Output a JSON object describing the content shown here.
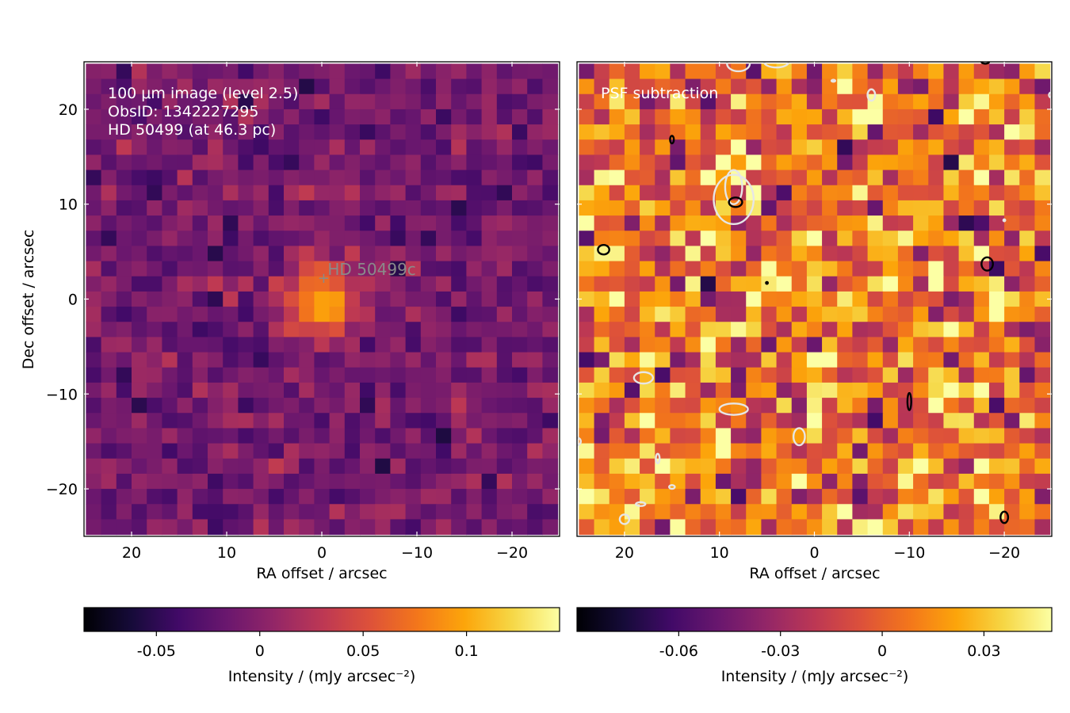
{
  "figure": {
    "ylabel": "Dec offset / arcsec",
    "xlabel": "RA offset / arcsec"
  },
  "chart_data": [
    {
      "type": "heatmap",
      "panel": "left",
      "annotation_lines": [
        "100 μm image (level 2.5)",
        "ObsID: 1342227295",
        "HD 50499 (at 46.3 pc)"
      ],
      "marker": {
        "symbol": "+",
        "label": "HD  50499c",
        "x": -0.2,
        "y": 2.2
      },
      "xlabel": "RA offset / arcsec",
      "ylabel": "Dec offset / arcsec",
      "xlim": [
        25,
        -25
      ],
      "ylim": [
        -25,
        25
      ],
      "xticks": [
        20,
        10,
        0,
        -10,
        -20
      ],
      "yticks": [
        20,
        10,
        0,
        -10,
        -20
      ],
      "xtick_labels": [
        "20",
        "10",
        "0",
        "−10",
        "−20"
      ],
      "ytick_labels": [
        "20",
        "10",
        "0",
        "−10",
        "−20"
      ],
      "colormap": "inferno",
      "vmin": -0.085,
      "vmax": 0.145,
      "colorbar": {
        "ticks": [
          -0.05,
          0,
          0.05,
          0.1
        ],
        "tick_labels": [
          "-0.05",
          "0",
          "0.05",
          "0.1"
        ],
        "label": "Intensity / (mJy arcsec⁻²)"
      },
      "peak": {
        "x": 0,
        "y": 0,
        "value": 0.14
      },
      "pixel_scale_arcsec": 1.6
    },
    {
      "type": "heatmap",
      "panel": "right",
      "annotation_lines": [
        "PSF subtraction"
      ],
      "xlabel": "RA offset / arcsec",
      "xlim": [
        25,
        -25
      ],
      "ylim": [
        -25,
        25
      ],
      "xticks": [
        20,
        10,
        0,
        -10,
        -20
      ],
      "xtick_labels": [
        "20",
        "10",
        "0",
        "−10",
        "−20"
      ],
      "colormap": "inferno",
      "vmin": -0.09,
      "vmax": 0.05,
      "colorbar": {
        "ticks": [
          -0.06,
          -0.03,
          0,
          0.03
        ],
        "tick_labels": [
          "-0.06",
          "-0.03",
          "0",
          "0.03"
        ],
        "label": "Intensity / (mJy arcsec⁻²)"
      },
      "contours": {
        "positive_color": "#000000",
        "negative_color": "#e6e6e6",
        "negative": [
          {
            "cx": 8.5,
            "cy": 10.5,
            "rx": 2.1,
            "ry": 2.6
          },
          {
            "cx": 8.5,
            "cy": 11.8,
            "rx": 0.9,
            "ry": 1.8
          },
          {
            "cx": 18,
            "cy": -8.3,
            "rx": 1.0,
            "ry": 0.6
          },
          {
            "cx": 8.5,
            "cy": -11.6,
            "rx": 1.5,
            "ry": 0.6
          },
          {
            "cx": 1.6,
            "cy": -14.5,
            "rx": 0.6,
            "ry": 0.9
          },
          {
            "cx": 20,
            "cy": -23.2,
            "rx": 0.5,
            "ry": 0.5
          },
          {
            "cx": 8,
            "cy": 24.8,
            "rx": 1.2,
            "ry": 0.8
          },
          {
            "cx": 4,
            "cy": 25,
            "rx": 1.3,
            "ry": 0.6
          },
          {
            "cx": -6,
            "cy": 21.5,
            "rx": 0.4,
            "ry": 0.6
          },
          {
            "cx": -25,
            "cy": 21.5,
            "rx": 0.3,
            "ry": 0.3
          },
          {
            "cx": 16.5,
            "cy": -16.8,
            "rx": 0.2,
            "ry": 0.5
          },
          {
            "cx": 15,
            "cy": -19.8,
            "rx": 0.3,
            "ry": 0.2
          },
          {
            "cx": 18.3,
            "cy": -21.6,
            "rx": 0.5,
            "ry": 0.2
          },
          {
            "cx": 25,
            "cy": -15,
            "rx": 0.4,
            "ry": 0.4
          },
          {
            "cx": -2,
            "cy": 23,
            "rx": 0.2,
            "ry": 0.1
          },
          {
            "cx": -20,
            "cy": 8.3,
            "rx": 0.1,
            "ry": 0.1
          }
        ],
        "positive": [
          {
            "cx": 8.3,
            "cy": 10.2,
            "rx": 0.7,
            "ry": 0.5
          },
          {
            "cx": 22.2,
            "cy": 5.2,
            "rx": 0.6,
            "ry": 0.5
          },
          {
            "cx": -18.2,
            "cy": 3.7,
            "rx": 0.6,
            "ry": 0.7
          },
          {
            "cx": -10,
            "cy": -10.8,
            "rx": 0.2,
            "ry": 0.9
          },
          {
            "cx": -20,
            "cy": -23,
            "rx": 0.4,
            "ry": 0.6
          },
          {
            "cx": 15,
            "cy": 16.8,
            "rx": 0.2,
            "ry": 0.4
          },
          {
            "cx": 5,
            "cy": 1.7,
            "rx": 0.1,
            "ry": 0.1
          },
          {
            "cx": -18,
            "cy": 25,
            "rx": 0.4,
            "ry": 0.2
          }
        ]
      },
      "pixel_scale_arcsec": 1.6
    }
  ]
}
